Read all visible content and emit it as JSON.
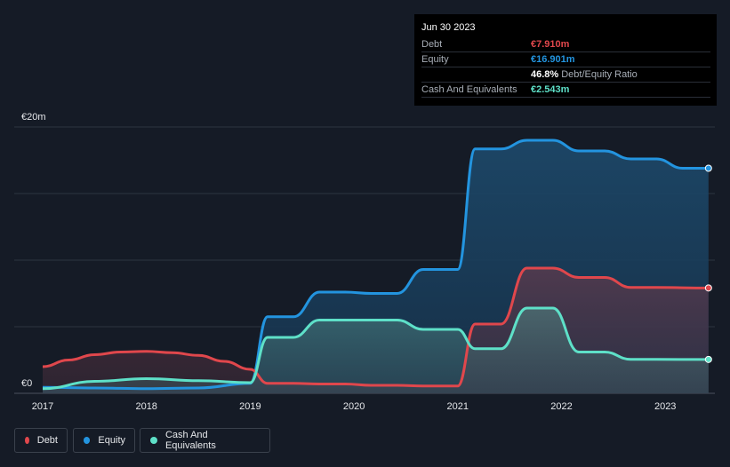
{
  "chart_data": {
    "type": "area",
    "currency_unit": "€",
    "y_axis": {
      "max_label": "€20m",
      "min_label": "€0",
      "ylim": [
        0,
        20
      ]
    },
    "x_ticks": [
      "2017",
      "2018",
      "2019",
      "2020",
      "2021",
      "2022",
      "2023"
    ],
    "x_range": [
      "2017-01",
      "2023-06"
    ],
    "grid": true,
    "legend_position": "bottom-left",
    "series": [
      {
        "name": "Debt",
        "color": "#e0474c",
        "points": [
          [
            "2017-01",
            2.0
          ],
          [
            "2017-04",
            2.5
          ],
          [
            "2017-07",
            2.9
          ],
          [
            "2017-10",
            3.1
          ],
          [
            "2018-01",
            3.15
          ],
          [
            "2018-04",
            3.05
          ],
          [
            "2018-07",
            2.85
          ],
          [
            "2018-10",
            2.4
          ],
          [
            "2019-01",
            1.8
          ],
          [
            "2019-03",
            0.75
          ],
          [
            "2019-06",
            0.75
          ],
          [
            "2019-09",
            0.7
          ],
          [
            "2019-12",
            0.7
          ],
          [
            "2020-03",
            0.6
          ],
          [
            "2020-06",
            0.6
          ],
          [
            "2020-09",
            0.55
          ],
          [
            "2021-01",
            0.55
          ],
          [
            "2021-03",
            5.2
          ],
          [
            "2021-06",
            5.2
          ],
          [
            "2021-09",
            9.4
          ],
          [
            "2021-12",
            9.4
          ],
          [
            "2022-03",
            8.7
          ],
          [
            "2022-06",
            8.7
          ],
          [
            "2022-09",
            7.95
          ],
          [
            "2022-12",
            7.95
          ],
          [
            "2023-06",
            7.91
          ]
        ]
      },
      {
        "name": "Equity",
        "color": "#2394df",
        "points": [
          [
            "2017-01",
            0.45
          ],
          [
            "2017-07",
            0.4
          ],
          [
            "2018-01",
            0.35
          ],
          [
            "2018-07",
            0.4
          ],
          [
            "2019-01",
            0.75
          ],
          [
            "2019-03",
            5.75
          ],
          [
            "2019-06",
            5.75
          ],
          [
            "2019-09",
            7.6
          ],
          [
            "2019-12",
            7.6
          ],
          [
            "2020-03",
            7.5
          ],
          [
            "2020-06",
            7.5
          ],
          [
            "2020-09",
            9.3
          ],
          [
            "2021-01",
            9.3
          ],
          [
            "2021-03",
            18.35
          ],
          [
            "2021-06",
            18.35
          ],
          [
            "2021-09",
            19.0
          ],
          [
            "2021-12",
            19.0
          ],
          [
            "2022-03",
            18.2
          ],
          [
            "2022-06",
            18.2
          ],
          [
            "2022-09",
            17.6
          ],
          [
            "2022-12",
            17.6
          ],
          [
            "2023-03",
            16.9
          ],
          [
            "2023-06",
            16.901
          ]
        ]
      },
      {
        "name": "Cash And Equivalents",
        "color": "#5ee0c8",
        "points": [
          [
            "2017-01",
            0.35
          ],
          [
            "2017-07",
            0.9
          ],
          [
            "2018-01",
            1.1
          ],
          [
            "2018-07",
            0.95
          ],
          [
            "2019-01",
            0.8
          ],
          [
            "2019-03",
            4.2
          ],
          [
            "2019-06",
            4.2
          ],
          [
            "2019-09",
            5.5
          ],
          [
            "2019-12",
            5.5
          ],
          [
            "2020-03",
            5.5
          ],
          [
            "2020-06",
            5.5
          ],
          [
            "2020-09",
            4.8
          ],
          [
            "2021-01",
            4.8
          ],
          [
            "2021-03",
            3.35
          ],
          [
            "2021-06",
            3.35
          ],
          [
            "2021-09",
            6.4
          ],
          [
            "2021-12",
            6.4
          ],
          [
            "2022-03",
            3.1
          ],
          [
            "2022-06",
            3.1
          ],
          [
            "2022-09",
            2.55
          ],
          [
            "2022-12",
            2.55
          ],
          [
            "2023-06",
            2.543
          ]
        ]
      }
    ]
  },
  "tooltip": {
    "date": "Jun 30 2023",
    "rows": [
      {
        "label": "Debt",
        "value": "€7.910m",
        "color": "#e0474c"
      },
      {
        "label": "Equity",
        "value": "€16.901m",
        "color": "#2394df"
      },
      {
        "label": "",
        "value": "46.8%",
        "sub": "Debt/Equity Ratio",
        "color": "#ffffff"
      },
      {
        "label": "Cash And Equivalents",
        "value": "€2.543m",
        "color": "#5ee0c8"
      }
    ]
  },
  "legend": [
    {
      "label": "Debt",
      "color": "#e0474c"
    },
    {
      "label": "Equity",
      "color": "#2394df"
    },
    {
      "label": "Cash And Equivalents",
      "color": "#5ee0c8"
    }
  ]
}
